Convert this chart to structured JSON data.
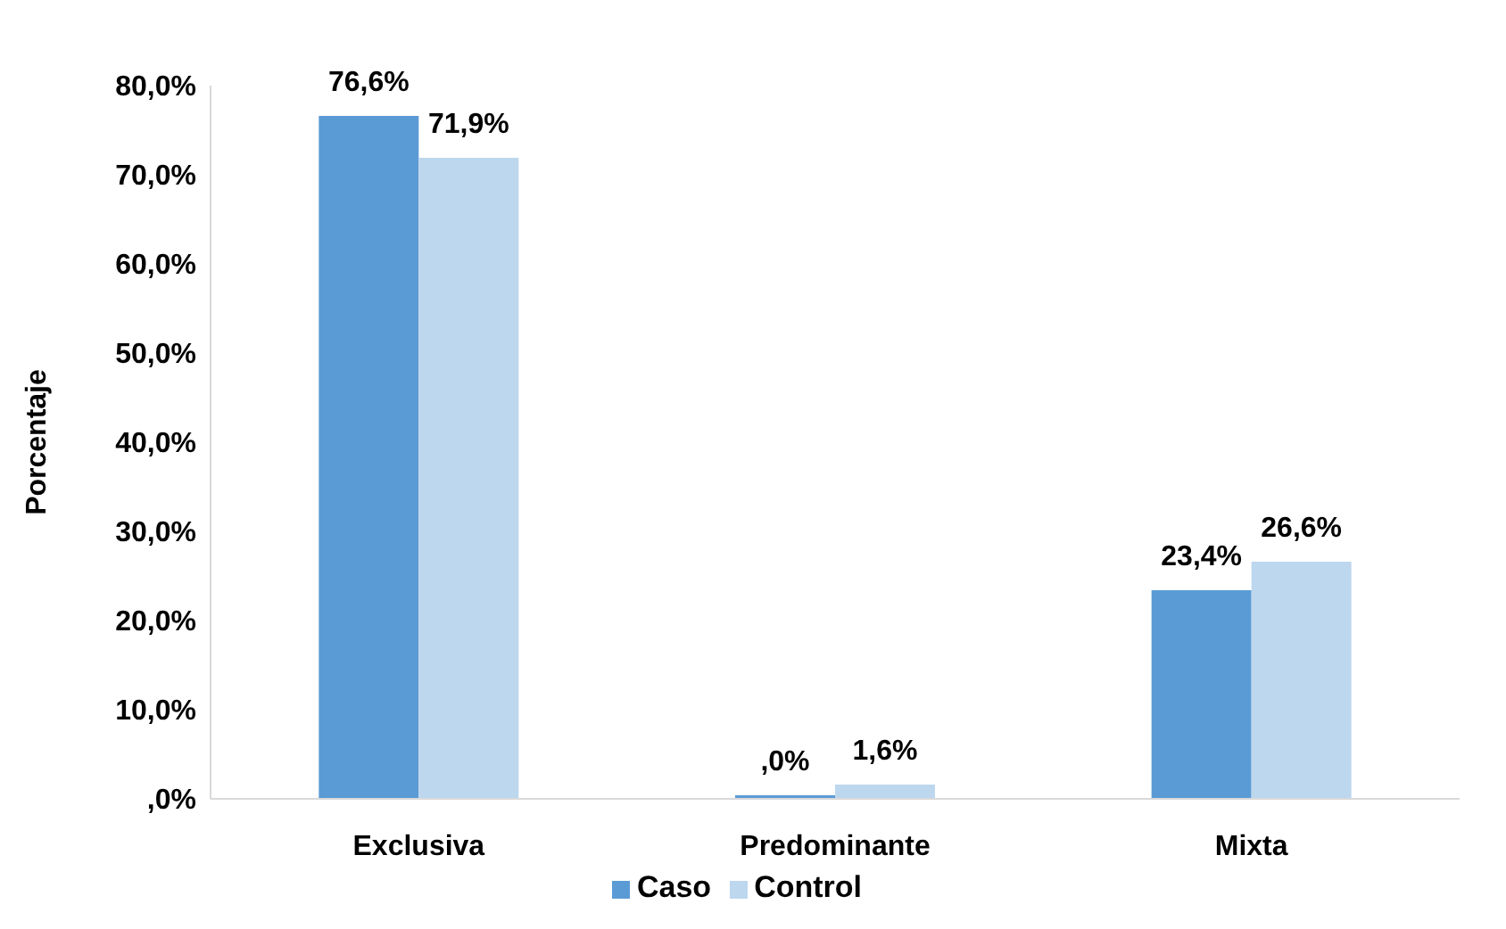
{
  "chart_data": {
    "type": "bar",
    "ylabel": "Porcentaje",
    "categories": [
      "Exclusiva",
      "Predominante",
      "Mixta"
    ],
    "series": [
      {
        "name": "Caso",
        "color": "#5b9bd5",
        "values": [
          76.6,
          0,
          23.4
        ],
        "value_labels": [
          "76,6%",
          ",0%",
          "23,4%"
        ]
      },
      {
        "name": "Control",
        "color": "#bdd7ee",
        "values": [
          71.9,
          1.6,
          26.6
        ],
        "value_labels": [
          "71,9%",
          "1,6%",
          "26,6%"
        ]
      }
    ],
    "ylim": [
      0,
      80
    ],
    "yticks": [
      {
        "value": 0,
        "label": ",0%"
      },
      {
        "value": 10,
        "label": "10,0%"
      },
      {
        "value": 20,
        "label": "20,0%"
      },
      {
        "value": 30,
        "label": "30,0%"
      },
      {
        "value": 40,
        "label": "40,0%"
      },
      {
        "value": 50,
        "label": "50,0%"
      },
      {
        "value": 60,
        "label": "60,0%"
      },
      {
        "value": 70,
        "label": "70,0%"
      },
      {
        "value": 80,
        "label": "80,0%"
      }
    ],
    "grid": false,
    "legend": "bottom"
  }
}
